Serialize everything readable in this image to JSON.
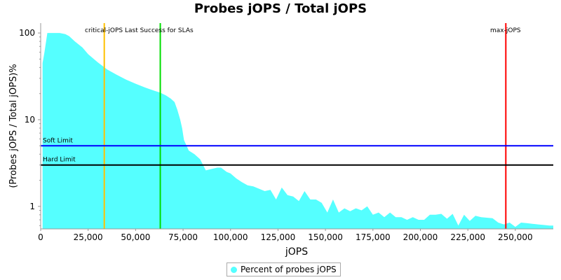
{
  "chart_data": {
    "type": "area",
    "title": "Probes jOPS / Total jOPS",
    "xlabel": "jOPS",
    "ylabel": "(Probes jOPS / Total jOPS)%",
    "xlim": [
      0,
      270000
    ],
    "ylim": [
      0.55,
      130
    ],
    "y_scale": "log",
    "x_ticks": [
      0,
      25000,
      50000,
      75000,
      100000,
      125000,
      150000,
      175000,
      200000,
      225000,
      250000
    ],
    "x_tick_labels": [
      "0",
      "25,000",
      "50,000",
      "75,000",
      "100,000",
      "125,000",
      "150,000",
      "175,000",
      "200,000",
      "225,000",
      "250,000"
    ],
    "y_ticks": [
      1,
      10,
      100
    ],
    "y_tick_labels": [
      "1",
      "10",
      "100"
    ],
    "series": [
      {
        "name": "Percent of probes jOPS",
        "color": "#55ffff",
        "x": [
          1000,
          2000,
          3500,
          10000,
          13000,
          15000,
          18000,
          22000,
          25000,
          30000,
          35000,
          40000,
          45000,
          50000,
          55000,
          60000,
          63000,
          66000,
          68500,
          70500,
          72000,
          73500,
          74500,
          75500,
          78000,
          81000,
          84000,
          87000,
          90000,
          93000,
          95000,
          98000,
          100000,
          103000,
          106000,
          109000,
          112000,
          115000,
          118000,
          121000,
          124000,
          127000,
          130000,
          133000,
          136000,
          139000,
          142000,
          145000,
          148000,
          151000,
          154000,
          157000,
          160000,
          163000,
          166000,
          169000,
          172000,
          175000,
          178000,
          181000,
          184000,
          187000,
          190000,
          193000,
          196000,
          199000,
          202000,
          205000,
          208000,
          211000,
          214000,
          217000,
          220000,
          223000,
          226000,
          229000,
          232000,
          235000,
          238000,
          241000,
          244000,
          247000,
          250000,
          253000,
          256000,
          259000,
          262000,
          265000,
          268000,
          270000
        ],
        "y": [
          45,
          60,
          100,
          100,
          97,
          92,
          80,
          68,
          57,
          46,
          38,
          33,
          29,
          26,
          23.5,
          21.5,
          20.5,
          19,
          17.5,
          16,
          13,
          10,
          8,
          5.8,
          4.4,
          4,
          3.5,
          2.6,
          2.7,
          2.8,
          2.8,
          2.5,
          2.4,
          2.1,
          1.9,
          1.75,
          1.7,
          1.6,
          1.5,
          1.55,
          1.2,
          1.65,
          1.35,
          1.3,
          1.15,
          1.5,
          1.2,
          1.2,
          1.1,
          0.85,
          1.2,
          0.85,
          0.95,
          0.88,
          0.95,
          0.9,
          1.0,
          0.8,
          0.85,
          0.75,
          0.85,
          0.75,
          0.75,
          0.7,
          0.75,
          0.7,
          0.7,
          0.8,
          0.8,
          0.82,
          0.72,
          0.82,
          0.6,
          0.8,
          0.68,
          0.78,
          0.75,
          0.74,
          0.73,
          0.65,
          0.62,
          0.65,
          0.58,
          0.65,
          0.64,
          0.63,
          0.62,
          0.61,
          0.6,
          0.6
        ]
      }
    ],
    "reference_lines": [
      {
        "name": "critical-jOPS",
        "axis": "x",
        "value": 33500,
        "color": "#ffc000"
      },
      {
        "name": "Last Success for SLAs",
        "axis": "x",
        "value": 63000,
        "color": "#00dd00"
      },
      {
        "name": "max-jOPS",
        "axis": "x",
        "value": 245000,
        "color": "#ff0000"
      },
      {
        "name": "Soft Limit",
        "axis": "y",
        "value": 5,
        "color": "#0000ff"
      },
      {
        "name": "Hard Limit",
        "axis": "y",
        "value": 3,
        "color": "#000000"
      }
    ],
    "marker_labels": {
      "vertical_combined": "critical-jOPS Last Success for SLAs",
      "max": "max-jOPS",
      "soft": "Soft Limit",
      "hard": "Hard Limit"
    },
    "legend": {
      "position": "bottom",
      "entries": [
        "Percent of probes jOPS"
      ]
    },
    "grid": false
  }
}
